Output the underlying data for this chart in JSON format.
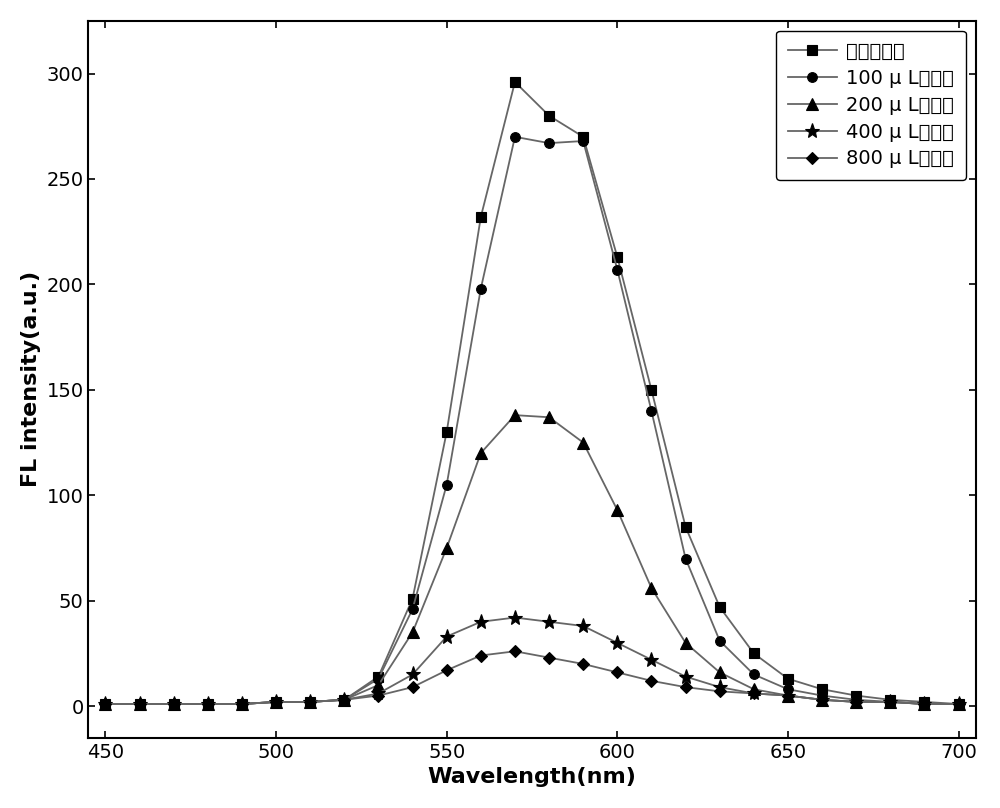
{
  "wavelengths": [
    450,
    460,
    470,
    480,
    490,
    500,
    510,
    520,
    530,
    540,
    550,
    560,
    570,
    580,
    590,
    600,
    610,
    620,
    630,
    640,
    650,
    660,
    670,
    680,
    690,
    700
  ],
  "series": {
    "no_chlorogenic": [
      1,
      1,
      1,
      1,
      1,
      2,
      2,
      3,
      14,
      51,
      130,
      232,
      296,
      280,
      270,
      213,
      150,
      85,
      47,
      25,
      13,
      8,
      5,
      3,
      2,
      1
    ],
    "100uL": [
      1,
      1,
      1,
      1,
      1,
      2,
      2,
      3,
      13,
      46,
      105,
      198,
      270,
      267,
      268,
      207,
      140,
      70,
      31,
      15,
      8,
      5,
      3,
      2,
      1,
      1
    ],
    "200uL": [
      1,
      1,
      1,
      1,
      1,
      2,
      2,
      3,
      10,
      35,
      75,
      120,
      138,
      137,
      125,
      93,
      56,
      30,
      16,
      8,
      5,
      3,
      2,
      2,
      1,
      1
    ],
    "400uL": [
      1,
      1,
      1,
      1,
      1,
      2,
      2,
      3,
      6,
      15,
      33,
      40,
      42,
      40,
      38,
      30,
      22,
      14,
      9,
      6,
      5,
      3,
      2,
      2,
      1,
      1
    ],
    "800uL": [
      1,
      1,
      1,
      1,
      1,
      2,
      2,
      3,
      5,
      9,
      17,
      24,
      26,
      23,
      20,
      16,
      12,
      9,
      7,
      6,
      5,
      3,
      2,
      2,
      1,
      1
    ]
  },
  "line_color": "#666666",
  "markers": [
    "s",
    "o",
    "^",
    "*",
    "D"
  ],
  "marker_size": [
    7,
    7,
    8,
    11,
    6
  ],
  "legend_labels": [
    "不加绿原酸",
    "100 μ L绿原酸",
    "200 μ L绿原酸",
    "400 μ L绿原酸",
    "800 μ L绿原酸"
  ],
  "xlabel": "Wavelength(nm)",
  "ylabel": "FL intensity(a.u.)",
  "xlim": [
    445,
    705
  ],
  "ylim": [
    -15,
    325
  ],
  "xticks": [
    450,
    500,
    550,
    600,
    650,
    700
  ],
  "yticks": [
    0,
    50,
    100,
    150,
    200,
    250,
    300
  ],
  "figsize": [
    10,
    8.08
  ],
  "dpi": 100
}
